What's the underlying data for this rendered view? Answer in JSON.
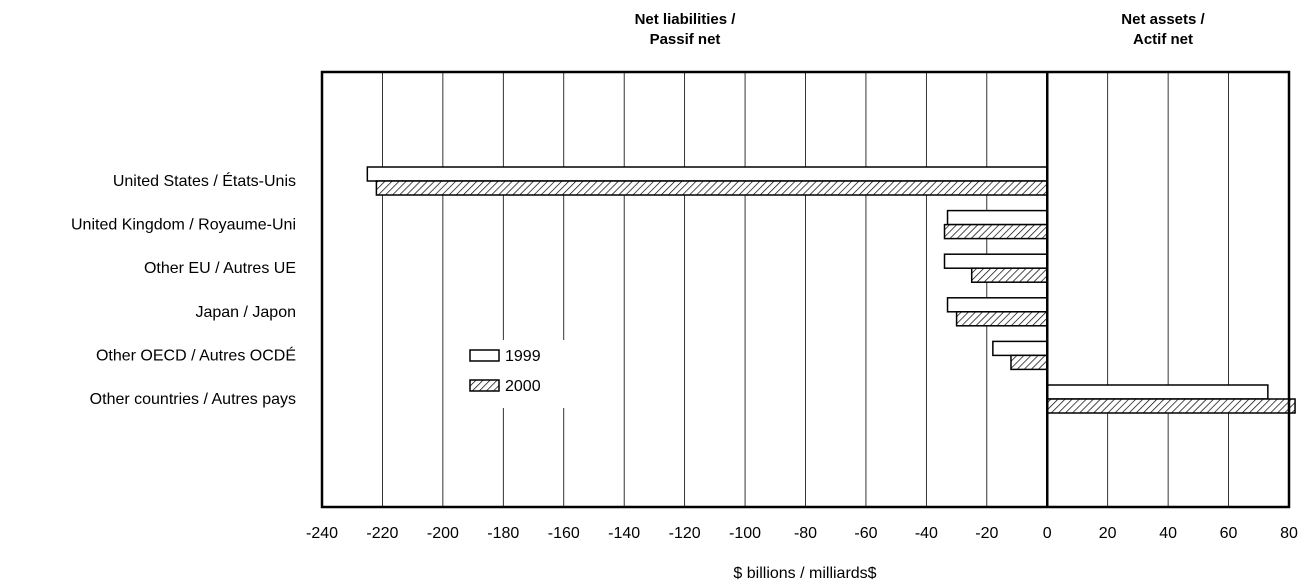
{
  "chart_data": {
    "type": "bar",
    "orientation": "horizontal",
    "categories": [
      "United States / États-Unis",
      "United Kingdom / Royaume-Uni",
      "Other EU / Autres UE",
      "Japan / Japon",
      "Other OECD / Autres OCDÉ",
      "Other countries / Autres pays"
    ],
    "series": [
      {
        "name": "1999",
        "values": [
          -225,
          -33,
          -34,
          -33,
          -18,
          73
        ]
      },
      {
        "name": "2000",
        "values": [
          -222,
          -34,
          -25,
          -30,
          -12,
          82
        ]
      }
    ],
    "xlim": [
      -240,
      80
    ],
    "xticks": [
      "-240",
      "-220",
      "-200",
      "-180",
      "-160",
      "-140",
      "-120",
      "-100",
      "-80",
      "-60",
      "-40",
      "-20",
      "0",
      "20",
      "40",
      "60",
      "80"
    ],
    "xlabel": "$ billions / milliards$",
    "header_left_line1": "Net liabilities /",
    "header_left_line2": "Passif net",
    "header_right_line1": "Net assets /",
    "header_right_line2": "Actif net",
    "grid": "vertical",
    "legend": "center-left",
    "colors": {
      "1999": "#ffffff",
      "2000": "hatched",
      "stroke": "#000000"
    }
  }
}
